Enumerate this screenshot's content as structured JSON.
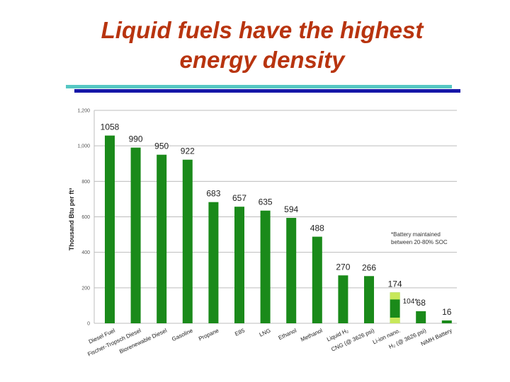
{
  "slide": {
    "title_line1": "Liquid fuels have the highest",
    "title_line2": "energy density"
  },
  "colors": {
    "title": "#b8340f",
    "bar": "#1a8a1a",
    "bar_highlight": "#c8e85a",
    "rule_teal": "#56c7c3",
    "rule_navy": "#1616a8"
  },
  "chart_data": {
    "type": "bar",
    "title": "",
    "xlabel": "",
    "ylabel": "Thousand Btu per ft³",
    "ylim": [
      0,
      1200
    ],
    "yticks": [
      "0",
      "200",
      "400",
      "600",
      "800",
      "1,000",
      "1,200"
    ],
    "ytick_values": [
      0,
      200,
      400,
      600,
      800,
      1000,
      1200
    ],
    "grid": true,
    "categories": [
      "Diesel Fuel",
      "Fischer-Tropsch Diesel",
      "Biorenewable Diesel",
      "Gasoline",
      "Propane",
      "E85",
      "LNG",
      "Ethanol",
      "Methanol",
      "Liquid H₂",
      "CNG (@ 3626 psi)",
      "Li-ion nano.",
      "H₂ (@ 3626 psi)",
      "NiMH Battery"
    ],
    "values": [
      1058,
      990,
      950,
      922,
      683,
      657,
      635,
      594,
      488,
      270,
      266,
      174,
      68,
      16
    ],
    "value_labels": [
      "1058",
      "990",
      "950",
      "922",
      "683",
      "657",
      "635",
      "594",
      "488",
      "270",
      "266",
      "174",
      "68",
      "16"
    ],
    "annotations": {
      "li_ion_inner_value": 104,
      "li_ion_inner_label": "104*",
      "footnote": [
        "*Battery maintained",
        "between 20-80% SOC"
      ]
    }
  }
}
